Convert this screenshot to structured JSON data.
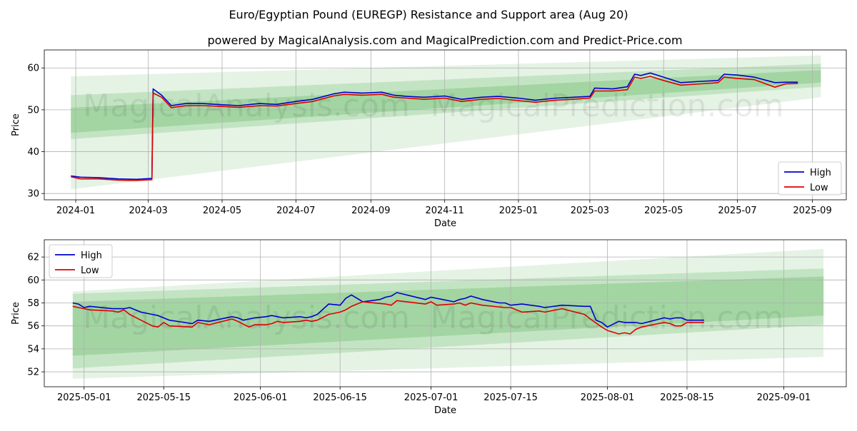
{
  "title": "Euro/Egyptian Pound (EUREGP) Resistance and Support area (Aug 20)",
  "subtitle": "powered by MagicalAnalysis.com and MagicalPrediction.com and Predict-Price.com",
  "watermarks": [
    "MagicalAnalysis.com",
    "MagicalPrediction.com"
  ],
  "colors": {
    "high": "#0000cc",
    "low": "#dd0000",
    "band": "#2ca02c",
    "grid": "#b0b0b0"
  },
  "chart_data": [
    {
      "type": "line",
      "xlabel": "Date",
      "ylabel": "Price",
      "x_ticks": [
        "2024-01",
        "2024-03",
        "2024-05",
        "2024-07",
        "2024-09",
        "2024-11",
        "2025-01",
        "2025-03",
        "2025-05",
        "2025-07",
        "2025-09"
      ],
      "y_ticks": [
        30,
        40,
        50,
        60
      ],
      "grid": true,
      "legend": {
        "position": "lower-right",
        "entries": [
          "High",
          "Low"
        ]
      },
      "series": [
        {
          "name": "High",
          "x": [
            "2023-12-28",
            "2024-01-05",
            "2024-01-20",
            "2024-02-05",
            "2024-02-20",
            "2024-03-04",
            "2024-03-05",
            "2024-03-12",
            "2024-03-20",
            "2024-04-01",
            "2024-04-15",
            "2024-05-01",
            "2024-05-15",
            "2024-06-01",
            "2024-06-15",
            "2024-07-01",
            "2024-07-15",
            "2024-08-01",
            "2024-08-10",
            "2024-08-25",
            "2024-09-10",
            "2024-09-20",
            "2024-10-01",
            "2024-10-15",
            "2024-11-01",
            "2024-11-15",
            "2024-12-01",
            "2024-12-15",
            "2025-01-01",
            "2025-01-15",
            "2025-02-01",
            "2025-02-15",
            "2025-03-01",
            "2025-03-05",
            "2025-03-20",
            "2025-04-01",
            "2025-04-07",
            "2025-04-12",
            "2025-04-20",
            "2025-05-01",
            "2025-05-15",
            "2025-06-01",
            "2025-06-15",
            "2025-06-20",
            "2025-07-01",
            "2025-07-15",
            "2025-08-01",
            "2025-08-10",
            "2025-08-20"
          ],
          "values": [
            34.2,
            33.9,
            33.8,
            33.5,
            33.4,
            33.6,
            55.0,
            53.5,
            51.0,
            51.5,
            51.5,
            51.2,
            51.0,
            51.5,
            51.3,
            52.0,
            52.5,
            53.8,
            54.2,
            54.0,
            54.2,
            53.5,
            53.2,
            53.0,
            53.3,
            52.5,
            53.0,
            53.2,
            52.8,
            52.3,
            52.8,
            53.0,
            53.2,
            55.2,
            55.0,
            55.5,
            58.5,
            58.2,
            58.8,
            57.8,
            56.5,
            56.8,
            57.0,
            58.5,
            58.3,
            57.8,
            56.5,
            56.6,
            56.6
          ]
        },
        {
          "name": "Low",
          "x": [
            "2023-12-28",
            "2024-01-05",
            "2024-01-20",
            "2024-02-05",
            "2024-02-20",
            "2024-03-04",
            "2024-03-05",
            "2024-03-12",
            "2024-03-20",
            "2024-04-01",
            "2024-04-15",
            "2024-05-01",
            "2024-05-15",
            "2024-06-01",
            "2024-06-15",
            "2024-07-01",
            "2024-07-15",
            "2024-08-01",
            "2024-08-10",
            "2024-08-25",
            "2024-09-10",
            "2024-09-20",
            "2024-10-01",
            "2024-10-15",
            "2024-11-01",
            "2024-11-15",
            "2024-12-01",
            "2024-12-15",
            "2025-01-01",
            "2025-01-15",
            "2025-02-01",
            "2025-02-15",
            "2025-03-01",
            "2025-03-05",
            "2025-03-20",
            "2025-04-01",
            "2025-04-07",
            "2025-04-12",
            "2025-04-20",
            "2025-05-01",
            "2025-05-15",
            "2025-06-01",
            "2025-06-15",
            "2025-06-20",
            "2025-07-01",
            "2025-07-15",
            "2025-08-01",
            "2025-08-10",
            "2025-08-20"
          ],
          "values": [
            34.0,
            33.5,
            33.5,
            33.2,
            33.1,
            33.3,
            54.0,
            53.0,
            50.5,
            51.0,
            51.0,
            50.8,
            50.6,
            51.0,
            50.9,
            51.5,
            52.0,
            53.3,
            53.7,
            53.5,
            53.7,
            53.0,
            52.8,
            52.5,
            52.8,
            52.0,
            52.5,
            52.7,
            52.2,
            51.8,
            52.3,
            52.5,
            52.8,
            54.5,
            54.5,
            54.8,
            57.8,
            57.5,
            58.0,
            57.0,
            55.9,
            56.2,
            56.5,
            57.8,
            57.5,
            57.2,
            55.4,
            56.2,
            56.3
          ]
        }
      ]
    },
    {
      "type": "line",
      "xlabel": "Date",
      "ylabel": "Price",
      "x_ticks": [
        "2025-05-01",
        "2025-05-15",
        "2025-06-01",
        "2025-06-15",
        "2025-07-01",
        "2025-07-15",
        "2025-08-01",
        "2025-08-15",
        "2025-09-01"
      ],
      "y_ticks": [
        52,
        54,
        56,
        58,
        60,
        62
      ],
      "grid": true,
      "legend": {
        "position": "upper-left",
        "entries": [
          "High",
          "Low"
        ]
      },
      "series": [
        {
          "name": "High",
          "x": [
            "2025-04-29",
            "2025-04-30",
            "2025-05-01",
            "2025-05-02",
            "2025-05-06",
            "2025-05-08",
            "2025-05-09",
            "2025-05-11",
            "2025-05-13",
            "2025-05-14",
            "2025-05-16",
            "2025-05-20",
            "2025-05-21",
            "2025-05-23",
            "2025-05-27",
            "2025-05-28",
            "2025-05-29",
            "2025-05-31",
            "2025-06-02",
            "2025-06-03",
            "2025-06-04",
            "2025-06-05",
            "2025-06-08",
            "2025-06-09",
            "2025-06-10",
            "2025-06-11",
            "2025-06-13",
            "2025-06-15",
            "2025-06-16",
            "2025-06-17",
            "2025-06-19",
            "2025-06-22",
            "2025-06-23",
            "2025-06-24",
            "2025-06-25",
            "2025-06-30",
            "2025-07-01",
            "2025-07-03",
            "2025-07-05",
            "2025-07-06",
            "2025-07-07",
            "2025-07-08",
            "2025-07-10",
            "2025-07-13",
            "2025-07-14",
            "2025-07-15",
            "2025-07-17",
            "2025-07-20",
            "2025-07-21",
            "2025-07-24",
            "2025-07-28",
            "2025-07-29",
            "2025-07-30",
            "2025-07-31",
            "2025-08-01",
            "2025-08-03",
            "2025-08-04",
            "2025-08-05",
            "2025-08-06",
            "2025-08-07",
            "2025-08-11",
            "2025-08-12",
            "2025-08-13",
            "2025-08-14",
            "2025-08-15",
            "2025-08-18"
          ],
          "values": [
            58.0,
            57.9,
            57.6,
            57.7,
            57.5,
            57.5,
            57.6,
            57.2,
            57.0,
            56.9,
            56.5,
            56.2,
            56.5,
            56.4,
            56.8,
            56.7,
            56.5,
            56.7,
            56.8,
            56.9,
            56.8,
            56.7,
            56.8,
            56.7,
            56.8,
            57.0,
            57.9,
            57.8,
            58.4,
            58.7,
            58.1,
            58.3,
            58.5,
            58.6,
            58.9,
            58.3,
            58.5,
            58.3,
            58.1,
            58.3,
            58.4,
            58.6,
            58.3,
            58.0,
            58.0,
            57.8,
            57.9,
            57.7,
            57.6,
            57.8,
            57.7,
            57.7,
            56.5,
            56.3,
            55.9,
            56.4,
            56.3,
            56.3,
            56.3,
            56.2,
            56.7,
            56.6,
            56.7,
            56.7,
            56.5,
            56.5
          ]
        },
        {
          "name": "Low",
          "x": [
            "2025-04-29",
            "2025-04-30",
            "2025-05-01",
            "2025-05-02",
            "2025-05-06",
            "2025-05-07",
            "2025-05-08",
            "2025-05-09",
            "2025-05-11",
            "2025-05-13",
            "2025-05-14",
            "2025-05-15",
            "2025-05-16",
            "2025-05-20",
            "2025-05-21",
            "2025-05-23",
            "2025-05-27",
            "2025-05-28",
            "2025-05-30",
            "2025-05-31",
            "2025-06-02",
            "2025-06-03",
            "2025-06-04",
            "2025-06-05",
            "2025-06-08",
            "2025-06-09",
            "2025-06-10",
            "2025-06-11",
            "2025-06-13",
            "2025-06-15",
            "2025-06-16",
            "2025-06-17",
            "2025-06-19",
            "2025-06-23",
            "2025-06-24",
            "2025-06-25",
            "2025-06-30",
            "2025-07-01",
            "2025-07-02",
            "2025-07-05",
            "2025-07-06",
            "2025-07-07",
            "2025-07-08",
            "2025-07-10",
            "2025-07-14",
            "2025-07-15",
            "2025-07-16",
            "2025-07-17",
            "2025-07-20",
            "2025-07-21",
            "2025-07-24",
            "2025-07-28",
            "2025-07-29",
            "2025-07-31",
            "2025-08-01",
            "2025-08-03",
            "2025-08-04",
            "2025-08-05",
            "2025-08-06",
            "2025-08-07",
            "2025-08-11",
            "2025-08-12",
            "2025-08-13",
            "2025-08-14",
            "2025-08-15",
            "2025-08-18"
          ],
          "values": [
            57.7,
            57.6,
            57.5,
            57.4,
            57.3,
            57.2,
            57.4,
            57.0,
            56.5,
            56.0,
            55.9,
            56.3,
            56.0,
            55.9,
            56.3,
            56.1,
            56.6,
            56.4,
            55.9,
            56.1,
            56.1,
            56.2,
            56.4,
            56.3,
            56.4,
            56.5,
            56.4,
            56.5,
            57.0,
            57.2,
            57.4,
            57.7,
            58.1,
            57.9,
            57.8,
            58.2,
            57.9,
            58.1,
            57.8,
            57.9,
            58.0,
            57.8,
            58.0,
            57.8,
            57.6,
            57.6,
            57.4,
            57.2,
            57.3,
            57.2,
            57.5,
            57.0,
            56.6,
            55.9,
            55.6,
            55.3,
            55.4,
            55.3,
            55.7,
            55.9,
            56.3,
            56.2,
            56.0,
            56.0,
            56.3,
            56.3
          ]
        }
      ]
    }
  ]
}
